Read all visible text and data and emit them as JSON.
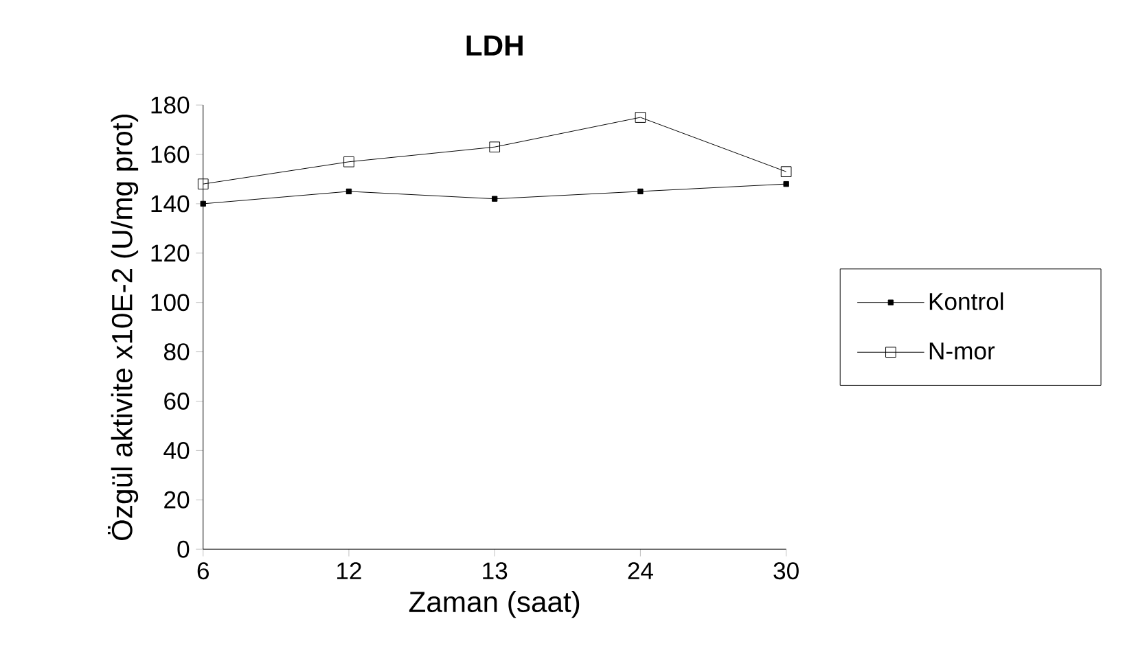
{
  "chart_data": {
    "type": "line",
    "title": "LDH",
    "xlabel": "Zaman (saat)",
    "ylabel": "Özgül aktivite  x10E-2 (U/mg prot)",
    "categories": [
      "6",
      "12",
      "13",
      "24",
      "30"
    ],
    "series": [
      {
        "name": "Kontrol",
        "color": "#000000",
        "marker": "square*",
        "values": [
          140,
          145,
          142,
          145,
          148
        ]
      },
      {
        "name": "N-mor",
        "color": "#000000",
        "marker": "square",
        "values": [
          148,
          157,
          163,
          175,
          153
        ]
      }
    ],
    "ylim": [
      0,
      180
    ],
    "yticks": [
      0,
      20,
      40,
      60,
      80,
      100,
      120,
      140,
      160,
      180
    ],
    "legend": "right",
    "grid": false,
    "line_style": "solid"
  }
}
